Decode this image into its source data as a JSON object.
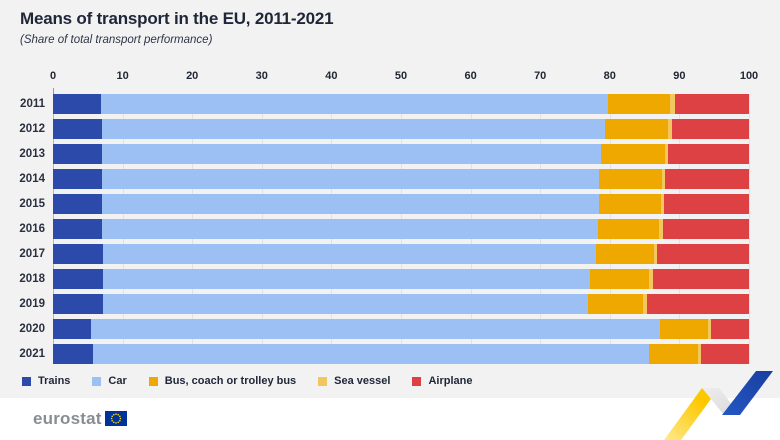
{
  "header": {
    "title": "Means of transport in the EU, 2011-2021",
    "subtitle": "(Share of total transport performance)"
  },
  "chart_data": {
    "type": "bar",
    "orientation": "horizontal",
    "stacked": true,
    "title": "Means of transport in the EU, 2011-2021",
    "subtitle": "(Share of total transport performance)",
    "categories": [
      "2011",
      "2012",
      "2013",
      "2014",
      "2015",
      "2016",
      "2017",
      "2018",
      "2019",
      "2020",
      "2021"
    ],
    "series": [
      {
        "name": "Trains",
        "color": "#2b4aa9",
        "values": [
          6.9,
          7.0,
          7.0,
          7.1,
          7.1,
          7.1,
          7.2,
          7.2,
          7.2,
          5.4,
          5.8
        ]
      },
      {
        "name": "Car",
        "color": "#9dc0f4",
        "values": [
          72.9,
          72.3,
          71.8,
          71.3,
          71.4,
          71.2,
          70.8,
          69.9,
          69.7,
          81.8,
          79.8
        ]
      },
      {
        "name": "Bus, coach or trolley bus",
        "color": "#efa800",
        "values": [
          8.9,
          9.1,
          9.1,
          9.1,
          8.8,
          8.8,
          8.3,
          8.6,
          7.9,
          6.9,
          7.1
        ]
      },
      {
        "name": "Sea vessel",
        "color": "#f3c75f",
        "values": [
          0.6,
          0.6,
          0.5,
          0.5,
          0.5,
          0.5,
          0.5,
          0.5,
          0.5,
          0.4,
          0.4
        ]
      },
      {
        "name": "Airplane",
        "color": "#dd4143",
        "values": [
          10.7,
          11.0,
          11.6,
          12.0,
          12.2,
          12.4,
          13.2,
          13.8,
          14.7,
          5.5,
          6.9
        ]
      }
    ],
    "x_axis": {
      "min": 0,
      "max": 100,
      "ticks": [
        0,
        10,
        20,
        30,
        40,
        50,
        60,
        70,
        80,
        90,
        100
      ],
      "position": "top"
    },
    "ylabel": "",
    "xlabel": "",
    "grid": true,
    "legend_position": "bottom"
  },
  "footer": {
    "brand": "eurostat"
  },
  "colors": {
    "background": "#f2f2f2",
    "footer_background": "#ffffff",
    "brand_text": "#8a8d8f",
    "eu_flag_blue": "#003399",
    "eu_flag_stars": "#ffd617",
    "decoration_yellow": "#fdc800",
    "decoration_yellow_light": "#ffe990",
    "decoration_blue": "#2457c5",
    "decoration_blue_dark": "#183f9e",
    "decoration_gray": "#d9d9d9"
  }
}
